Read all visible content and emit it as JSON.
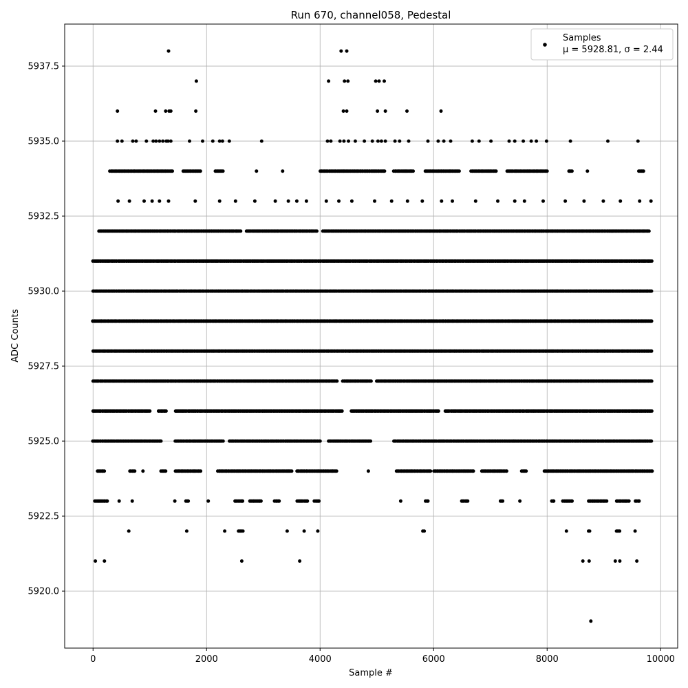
{
  "chart_data": {
    "type": "scatter",
    "title": "Run 670, channel058, Pedestal",
    "xlabel": "Sample #",
    "ylabel": "ADC Counts",
    "xlim": [
      -500,
      10300
    ],
    "ylim": [
      5918.1,
      5938.9
    ],
    "xticks": [
      0,
      2000,
      4000,
      6000,
      8000,
      10000
    ],
    "yticks": [
      5920.0,
      5922.5,
      5925.0,
      5927.5,
      5930.0,
      5932.5,
      5935.0,
      5937.5
    ],
    "grid": true,
    "legend": {
      "position": "top-right",
      "label": "Samples",
      "stats": "μ = 5928.81, σ = 2.44"
    },
    "marker_color": "#000000",
    "sample_count": 9850,
    "series": [
      {
        "name": "Samples",
        "points": [
          [
            1330,
            5938
          ],
          [
            4370,
            5938
          ],
          [
            4470,
            5938
          ],
          [
            1820,
            5937
          ],
          [
            4150,
            5937
          ],
          [
            4430,
            5937
          ],
          [
            4490,
            5937
          ],
          [
            4980,
            5937
          ],
          [
            5040,
            5937
          ],
          [
            5130,
            5937
          ],
          [
            430,
            5936
          ],
          [
            1100,
            5936
          ],
          [
            1280,
            5936
          ],
          [
            1340,
            5936
          ],
          [
            1370,
            5936
          ],
          [
            1810,
            5936
          ],
          [
            4410,
            5936
          ],
          [
            4470,
            5936
          ],
          [
            5010,
            5936
          ],
          [
            5150,
            5936
          ],
          [
            5530,
            5936
          ],
          [
            6130,
            5936
          ],
          [
            430,
            5935
          ],
          [
            510,
            5935
          ],
          [
            700,
            5935
          ],
          [
            760,
            5935
          ],
          [
            940,
            5935
          ],
          [
            1060,
            5935
          ],
          [
            1110,
            5935
          ],
          [
            1170,
            5935
          ],
          [
            1230,
            5935
          ],
          [
            1290,
            5935
          ],
          [
            1320,
            5935
          ],
          [
            1370,
            5935
          ],
          [
            1700,
            5935
          ],
          [
            1930,
            5935
          ],
          [
            2110,
            5935
          ],
          [
            2230,
            5935
          ],
          [
            2280,
            5935
          ],
          [
            2400,
            5935
          ],
          [
            2970,
            5935
          ],
          [
            4130,
            5935
          ],
          [
            4190,
            5935
          ],
          [
            4350,
            5935
          ],
          [
            4420,
            5935
          ],
          [
            4500,
            5935
          ],
          [
            4620,
            5935
          ],
          [
            4780,
            5935
          ],
          [
            4920,
            5935
          ],
          [
            5020,
            5935
          ],
          [
            5080,
            5935
          ],
          [
            5150,
            5935
          ],
          [
            5320,
            5935
          ],
          [
            5400,
            5935
          ],
          [
            5560,
            5935
          ],
          [
            5900,
            5935
          ],
          [
            6080,
            5935
          ],
          [
            6180,
            5935
          ],
          [
            6300,
            5935
          ],
          [
            6680,
            5935
          ],
          [
            6800,
            5935
          ],
          [
            7010,
            5935
          ],
          [
            7330,
            5935
          ],
          [
            7430,
            5935
          ],
          [
            7580,
            5935
          ],
          [
            7720,
            5935
          ],
          [
            7810,
            5935
          ],
          [
            7990,
            5935
          ],
          [
            8410,
            5935
          ],
          [
            9070,
            5935
          ],
          [
            9600,
            5935
          ],
          [
            440,
            5933
          ],
          [
            640,
            5933
          ],
          [
            900,
            5933
          ],
          [
            1040,
            5933
          ],
          [
            1170,
            5933
          ],
          [
            1330,
            5933
          ],
          [
            1800,
            5933
          ],
          [
            2230,
            5933
          ],
          [
            2510,
            5933
          ],
          [
            2850,
            5933
          ],
          [
            3210,
            5933
          ],
          [
            3440,
            5933
          ],
          [
            3590,
            5933
          ],
          [
            3760,
            5933
          ],
          [
            4110,
            5933
          ],
          [
            4330,
            5933
          ],
          [
            4560,
            5933
          ],
          [
            4960,
            5933
          ],
          [
            5260,
            5933
          ],
          [
            5540,
            5933
          ],
          [
            5800,
            5933
          ],
          [
            6140,
            5933
          ],
          [
            6330,
            5933
          ],
          [
            6740,
            5933
          ],
          [
            7130,
            5933
          ],
          [
            7430,
            5933
          ],
          [
            7600,
            5933
          ],
          [
            7930,
            5933
          ],
          [
            8320,
            5933
          ],
          [
            8650,
            5933
          ],
          [
            8990,
            5933
          ],
          [
            9290,
            5933
          ],
          [
            9630,
            5933
          ],
          [
            9830,
            5933
          ],
          [
            40,
            5921
          ],
          [
            200,
            5921
          ],
          [
            2620,
            5921
          ],
          [
            3640,
            5921
          ],
          [
            8630,
            5921
          ],
          [
            8740,
            5921
          ],
          [
            9200,
            5921
          ],
          [
            9280,
            5921
          ],
          [
            9580,
            5921
          ],
          [
            8770,
            5919
          ]
        ],
        "dense_levels": [
          {
            "y": 5934,
            "x_ranges": [
              [
                300,
                1400
              ],
              [
                1590,
                1900
              ],
              [
                2150,
                2300
              ],
              [
                2880,
                2880
              ],
              [
                3340,
                3340
              ],
              [
                4000,
                5150
              ],
              [
                5300,
                5650
              ],
              [
                5850,
                6450
              ],
              [
                6660,
                7100
              ],
              [
                7300,
                8000
              ],
              [
                8380,
                8440
              ],
              [
                8710,
                8710
              ],
              [
                9620,
                9700
              ]
            ]
          },
          {
            "y": 5932,
            "x_ranges": [
              [
                100,
                2600
              ],
              [
                2700,
                3950
              ],
              [
                4050,
                9800
              ]
            ]
          },
          {
            "y": 5931,
            "x_ranges": [
              [
                0,
                9850
              ]
            ]
          },
          {
            "y": 5930,
            "x_ranges": [
              [
                0,
                9850
              ]
            ]
          },
          {
            "y": 5929,
            "x_ranges": [
              [
                0,
                9850
              ]
            ]
          },
          {
            "y": 5928,
            "x_ranges": [
              [
                0,
                9850
              ]
            ]
          },
          {
            "y": 5927,
            "x_ranges": [
              [
                0,
                4300
              ],
              [
                4400,
                4900
              ],
              [
                5000,
                9850
              ]
            ]
          },
          {
            "y": 5926,
            "x_ranges": [
              [
                0,
                1000
              ],
              [
                1150,
                1300
              ],
              [
                1450,
                4400
              ],
              [
                4550,
                6100
              ],
              [
                6200,
                9850
              ]
            ]
          },
          {
            "y": 5925,
            "x_ranges": [
              [
                0,
                1200
              ],
              [
                1450,
                2300
              ],
              [
                2400,
                4000
              ],
              [
                4150,
                4900
              ],
              [
                5300,
                9850
              ]
            ]
          },
          {
            "y": 5924,
            "x_ranges": [
              [
                80,
                200
              ],
              [
                650,
                740
              ],
              [
                880,
                880
              ],
              [
                1200,
                1290
              ],
              [
                1450,
                1900
              ],
              [
                2200,
                3500
              ],
              [
                3590,
                4300
              ],
              [
                4850,
                4850
              ],
              [
                5350,
                5950
              ],
              [
                6000,
                6700
              ],
              [
                6850,
                7300
              ],
              [
                7550,
                7630
              ],
              [
                7950,
                9850
              ]
            ]
          },
          {
            "y": 5923,
            "x_ranges": [
              [
                30,
                250
              ],
              [
                460,
                460
              ],
              [
                690,
                690
              ],
              [
                1440,
                1440
              ],
              [
                1640,
                1690
              ],
              [
                2030,
                2030
              ],
              [
                2500,
                2650
              ],
              [
                2760,
                2960
              ],
              [
                3200,
                3280
              ],
              [
                3600,
                3780
              ],
              [
                3900,
                3980
              ],
              [
                5420,
                5420
              ],
              [
                5860,
                5900
              ],
              [
                6500,
                6600
              ],
              [
                7180,
                7220
              ],
              [
                7520,
                7520
              ],
              [
                8080,
                8120
              ],
              [
                8280,
                8440
              ],
              [
                8730,
                9050
              ],
              [
                9220,
                9450
              ],
              [
                9560,
                9620
              ]
            ]
          },
          {
            "y": 5922,
            "x_ranges": [
              [
                630,
                630
              ],
              [
                1650,
                1650
              ],
              [
                2320,
                2320
              ],
              [
                2560,
                2640
              ],
              [
                3420,
                3420
              ],
              [
                3720,
                3720
              ],
              [
                3960,
                3960
              ],
              [
                5810,
                5840
              ],
              [
                8340,
                8340
              ],
              [
                8730,
                8760
              ],
              [
                9220,
                9280
              ],
              [
                9550,
                9550
              ]
            ]
          }
        ]
      }
    ]
  }
}
